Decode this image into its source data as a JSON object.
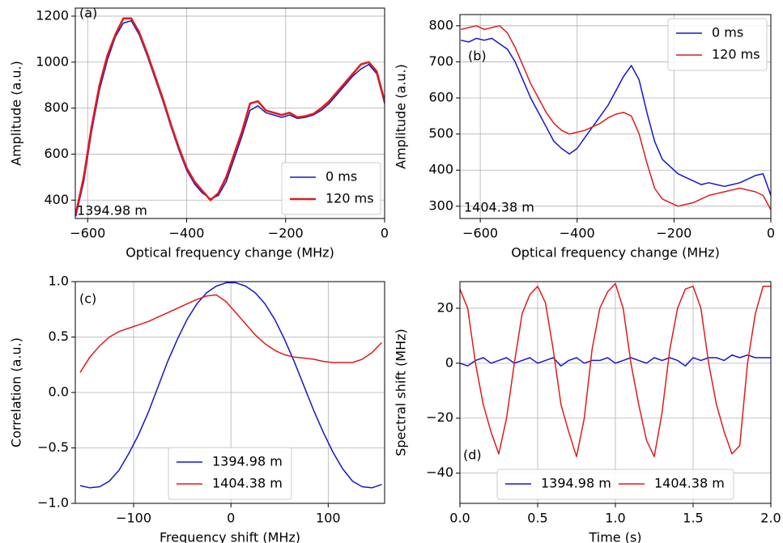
{
  "chart_data": [
    {
      "type": "line",
      "xlabel": "Optical frequency change (MHz)",
      "ylabel": "Amplitude (a.u.)",
      "annotations": [
        "(a)",
        "1394.98 m"
      ],
      "legend": "lower right",
      "grid": true,
      "xlim": [
        -625,
        0
      ],
      "ylim": [
        320,
        1235
      ],
      "xticks": [
        {
          "value": -600,
          "label": "−600"
        },
        {
          "value": -400,
          "label": "−400"
        },
        {
          "value": -200,
          "label": "−200"
        },
        0
      ],
      "yticks": [
        400,
        600,
        800,
        1000,
        1200
      ],
      "x": [
        -624,
        -608,
        -592,
        -576,
        -560,
        -544,
        -528,
        -512,
        -496,
        -480,
        -464,
        -448,
        -432,
        -416,
        -400,
        -384,
        -368,
        -352,
        -336,
        -320,
        -304,
        -288,
        -272,
        -256,
        -240,
        -224,
        -208,
        -192,
        -176,
        -160,
        -144,
        -128,
        -112,
        -96,
        -80,
        -64,
        -48,
        -32,
        -16,
        0
      ],
      "series": [
        {
          "name": "0 ms",
          "color": "#1515d0",
          "width": 1.5,
          "values": [
            330,
            480,
            700,
            880,
            1010,
            1110,
            1170,
            1180,
            1120,
            1030,
            930,
            830,
            720,
            620,
            530,
            470,
            430,
            405,
            420,
            480,
            580,
            680,
            790,
            810,
            780,
            770,
            760,
            770,
            755,
            760,
            770,
            790,
            820,
            860,
            900,
            940,
            970,
            990,
            950,
            820
          ]
        },
        {
          "name": "120 ms",
          "color": "#e01b1b",
          "width": 2.5,
          "values": [
            340,
            500,
            720,
            900,
            1030,
            1120,
            1190,
            1190,
            1130,
            1040,
            940,
            840,
            730,
            630,
            540,
            480,
            440,
            400,
            430,
            500,
            600,
            700,
            820,
            830,
            790,
            780,
            770,
            780,
            760,
            765,
            775,
            800,
            830,
            870,
            910,
            950,
            990,
            1000,
            960,
            830
          ]
        }
      ]
    },
    {
      "type": "line",
      "xlabel": "Optical frequency change (MHz)",
      "ylabel": "Amplitude (a.u.)",
      "annotations": [
        "(b)",
        "1404.38 m"
      ],
      "legend": "upper right",
      "grid": true,
      "xlim": [
        -642,
        0
      ],
      "ylim": [
        266,
        831
      ],
      "xticks": [
        {
          "value": -600,
          "label": "−600"
        },
        {
          "value": -400,
          "label": "−400"
        },
        {
          "value": -200,
          "label": "−200"
        },
        0
      ],
      "yticks": [
        300,
        400,
        500,
        600,
        700,
        800
      ],
      "x": [
        -640,
        -624,
        -608,
        -592,
        -576,
        -560,
        -544,
        -528,
        -512,
        -496,
        -480,
        -464,
        -448,
        -432,
        -416,
        -400,
        -384,
        -368,
        -352,
        -336,
        -320,
        -304,
        -288,
        -272,
        -256,
        -240,
        -224,
        -208,
        -192,
        -176,
        -160,
        -144,
        -128,
        -112,
        -96,
        -80,
        -64,
        -48,
        -32,
        -16,
        0
      ],
      "series": [
        {
          "name": "0 ms",
          "color": "#1515d0",
          "width": 1.5,
          "values": [
            760,
            755,
            765,
            760,
            765,
            750,
            735,
            700,
            650,
            600,
            560,
            520,
            480,
            460,
            445,
            460,
            490,
            520,
            550,
            580,
            620,
            660,
            690,
            650,
            560,
            480,
            430,
            410,
            390,
            380,
            370,
            360,
            365,
            360,
            355,
            360,
            365,
            375,
            385,
            390,
            330
          ]
        },
        {
          "name": "120 ms",
          "color": "#e01b1b",
          "width": 1.5,
          "values": [
            790,
            795,
            800,
            790,
            795,
            800,
            780,
            740,
            690,
            640,
            600,
            560,
            530,
            510,
            500,
            505,
            510,
            520,
            530,
            545,
            555,
            560,
            550,
            500,
            420,
            350,
            320,
            310,
            300,
            305,
            310,
            320,
            330,
            335,
            340,
            345,
            350,
            345,
            340,
            330,
            290
          ]
        }
      ]
    },
    {
      "type": "line",
      "xlabel": "Frequency shift (MHz)",
      "ylabel": "Correlation (a.u.)",
      "annotations": [
        "(c)"
      ],
      "legend": "lower center",
      "grid": true,
      "xlim": [
        -160,
        158
      ],
      "ylim": [
        -1,
        1
      ],
      "xticks": [
        {
          "value": -100,
          "label": "−100"
        },
        0,
        100
      ],
      "yticks": [
        {
          "value": -1,
          "label": "−1.0"
        },
        {
          "value": -0.5,
          "label": "−0.5"
        },
        {
          "value": 0,
          "label": "0.0"
        },
        0.5,
        {
          "value": 1,
          "label": "1.0"
        }
      ],
      "x": [
        -155,
        -145,
        -135,
        -125,
        -115,
        -105,
        -95,
        -85,
        -75,
        -65,
        -55,
        -45,
        -35,
        -25,
        -15,
        -5,
        5,
        15,
        25,
        35,
        45,
        55,
        65,
        75,
        85,
        95,
        105,
        115,
        125,
        135,
        145,
        155
      ],
      "series": [
        {
          "name": "1394.98 m",
          "color": "#1515d0",
          "width": 1.5,
          "values": [
            -0.84,
            -0.86,
            -0.85,
            -0.8,
            -0.7,
            -0.55,
            -0.38,
            -0.18,
            0.05,
            0.28,
            0.48,
            0.66,
            0.8,
            0.9,
            0.96,
            0.99,
            0.99,
            0.96,
            0.9,
            0.8,
            0.66,
            0.48,
            0.28,
            0.06,
            -0.16,
            -0.36,
            -0.54,
            -0.69,
            -0.8,
            -0.85,
            -0.86,
            -0.83
          ]
        },
        {
          "name": "1404.38 m",
          "color": "#e01b1b",
          "width": 1.5,
          "values": [
            0.18,
            0.32,
            0.42,
            0.5,
            0.55,
            0.58,
            0.61,
            0.64,
            0.68,
            0.72,
            0.76,
            0.8,
            0.84,
            0.87,
            0.88,
            0.82,
            0.72,
            0.62,
            0.52,
            0.44,
            0.38,
            0.34,
            0.32,
            0.31,
            0.3,
            0.28,
            0.27,
            0.27,
            0.27,
            0.3,
            0.36,
            0.45
          ]
        }
      ]
    },
    {
      "type": "line",
      "xlabel": "Time (s)",
      "ylabel": "Spectral shift (MHz)",
      "annotations": [
        "(d)"
      ],
      "legend": "lower center",
      "ncol": 2,
      "grid": true,
      "xlim": [
        0,
        2
      ],
      "ylim": [
        -51,
        29.7
      ],
      "xticks": [
        {
          "value": 0,
          "label": "0.0"
        },
        0.5,
        {
          "value": 1,
          "label": "1.0"
        },
        1.5,
        {
          "value": 2,
          "label": "2.0"
        }
      ],
      "yticks": [
        {
          "value": -40,
          "label": "−40"
        },
        {
          "value": -20,
          "label": "−20"
        },
        0,
        20
      ],
      "x": [
        0,
        0.05,
        0.1,
        0.15,
        0.2,
        0.25,
        0.3,
        0.35,
        0.4,
        0.45,
        0.5,
        0.55,
        0.6,
        0.65,
        0.7,
        0.75,
        0.8,
        0.85,
        0.9,
        0.95,
        1,
        1.05,
        1.1,
        1.15,
        1.2,
        1.25,
        1.3,
        1.35,
        1.4,
        1.45,
        1.5,
        1.55,
        1.6,
        1.65,
        1.7,
        1.75,
        1.8,
        1.85,
        1.9,
        1.95,
        2
      ],
      "series": [
        {
          "name": "1394.98 m",
          "color": "#1515d0",
          "width": 1.5,
          "values": [
            0,
            -1,
            1,
            2,
            0,
            1,
            2,
            0,
            1,
            2,
            0,
            1,
            2,
            -1,
            1,
            2,
            0,
            1,
            1,
            2,
            0,
            1,
            2,
            1,
            0,
            2,
            1,
            2,
            1,
            -1,
            2,
            1,
            2,
            2,
            1,
            3,
            2,
            3,
            2,
            2,
            2
          ]
        },
        {
          "name": "1404.38 m",
          "color": "#e01b1b",
          "width": 1.5,
          "values": [
            27,
            20,
            0,
            -15,
            -25,
            -33,
            -20,
            0,
            18,
            25,
            28,
            22,
            5,
            -15,
            -25,
            -34,
            -20,
            5,
            20,
            26,
            29,
            20,
            0,
            -15,
            -28,
            -34,
            -18,
            5,
            20,
            27,
            28,
            20,
            0,
            -15,
            -25,
            -33,
            -30,
            0,
            18,
            28,
            28
          ]
        }
      ]
    }
  ]
}
